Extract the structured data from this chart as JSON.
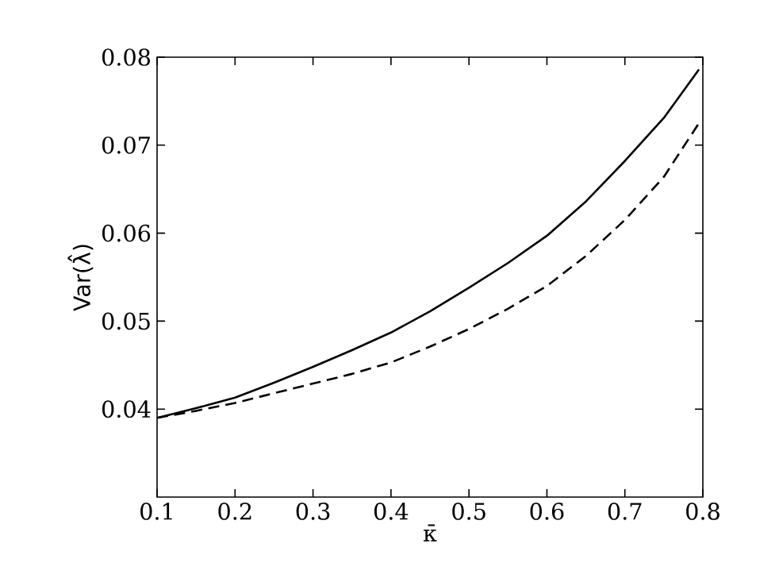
{
  "chart_data": {
    "type": "line",
    "xlabel": "κ̄",
    "ylabel": "Var(λ̂)",
    "x": [
      0.1,
      0.15,
      0.2,
      0.25,
      0.3,
      0.35,
      0.4,
      0.45,
      0.5,
      0.55,
      0.6,
      0.65,
      0.7,
      0.75,
      0.795
    ],
    "series": [
      {
        "color": "#000000",
        "line_style": "solid",
        "values": [
          0.039,
          0.0401,
          0.0413,
          0.043,
          0.0448,
          0.0467,
          0.0487,
          0.0511,
          0.0538,
          0.0566,
          0.0597,
          0.0636,
          0.0682,
          0.0731,
          0.0786
        ]
      },
      {
        "color": "#000000",
        "line_style": "dashed",
        "values": [
          0.039,
          0.0398,
          0.0407,
          0.0418,
          0.0429,
          0.044,
          0.0453,
          0.0471,
          0.0491,
          0.0514,
          0.054,
          0.0574,
          0.0615,
          0.0664,
          0.0725
        ]
      }
    ],
    "xlim": [
      0.1,
      0.8
    ],
    "ylim": [
      0.03,
      0.08
    ],
    "xticks": [
      0.1,
      0.2,
      0.3,
      0.4,
      0.5,
      0.6,
      0.7,
      0.8
    ],
    "yticks": [
      0.04,
      0.05,
      0.06,
      0.07,
      0.08
    ],
    "grid": false,
    "marker": "none"
  }
}
